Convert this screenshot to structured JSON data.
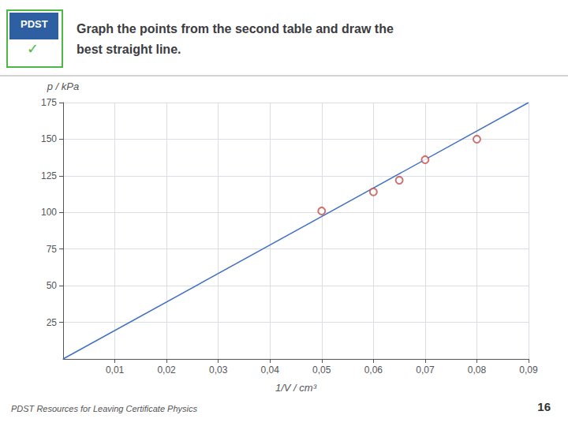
{
  "chart_data": {
    "type": "scatter",
    "title": "Graph the points from the second table and draw the\nbest straight line.",
    "xlabel": "1/V / cm³",
    "ylabel": "p / kPa",
    "annotations": [
      "PDST",
      "✓",
      "PDST Resources for Leaving Certificate Physics",
      "16"
    ],
    "xlim": [
      0,
      0.09
    ],
    "ylim": [
      0,
      175
    ],
    "xticks": [
      {
        "value": 0.01,
        "label": "0,01"
      },
      {
        "value": 0.02,
        "label": "0,02"
      },
      {
        "value": 0.03,
        "label": "0,03"
      },
      {
        "value": 0.04,
        "label": "0,04"
      },
      {
        "value": 0.05,
        "label": "0,05"
      },
      {
        "value": 0.06,
        "label": "0,06"
      },
      {
        "value": 0.07,
        "label": "0,07"
      },
      {
        "value": 0.08,
        "label": "0,08"
      },
      {
        "value": 0.09,
        "label": "0,09"
      }
    ],
    "yticks": [
      25,
      50,
      75,
      100,
      125,
      150,
      175
    ],
    "grid": true,
    "series": [
      {
        "type": "scatter",
        "marker": "open_circle",
        "color": "#c0504d",
        "x": [
          0.05,
          0.06,
          0.065,
          0.07,
          0.08
        ],
        "values": [
          101,
          114,
          122,
          136,
          150
        ]
      },
      {
        "type": "line",
        "line_style": "solid",
        "color": "#4472c4",
        "x": [
          0.0,
          0.09
        ],
        "values": [
          0.0,
          175.0
        ]
      }
    ]
  }
}
